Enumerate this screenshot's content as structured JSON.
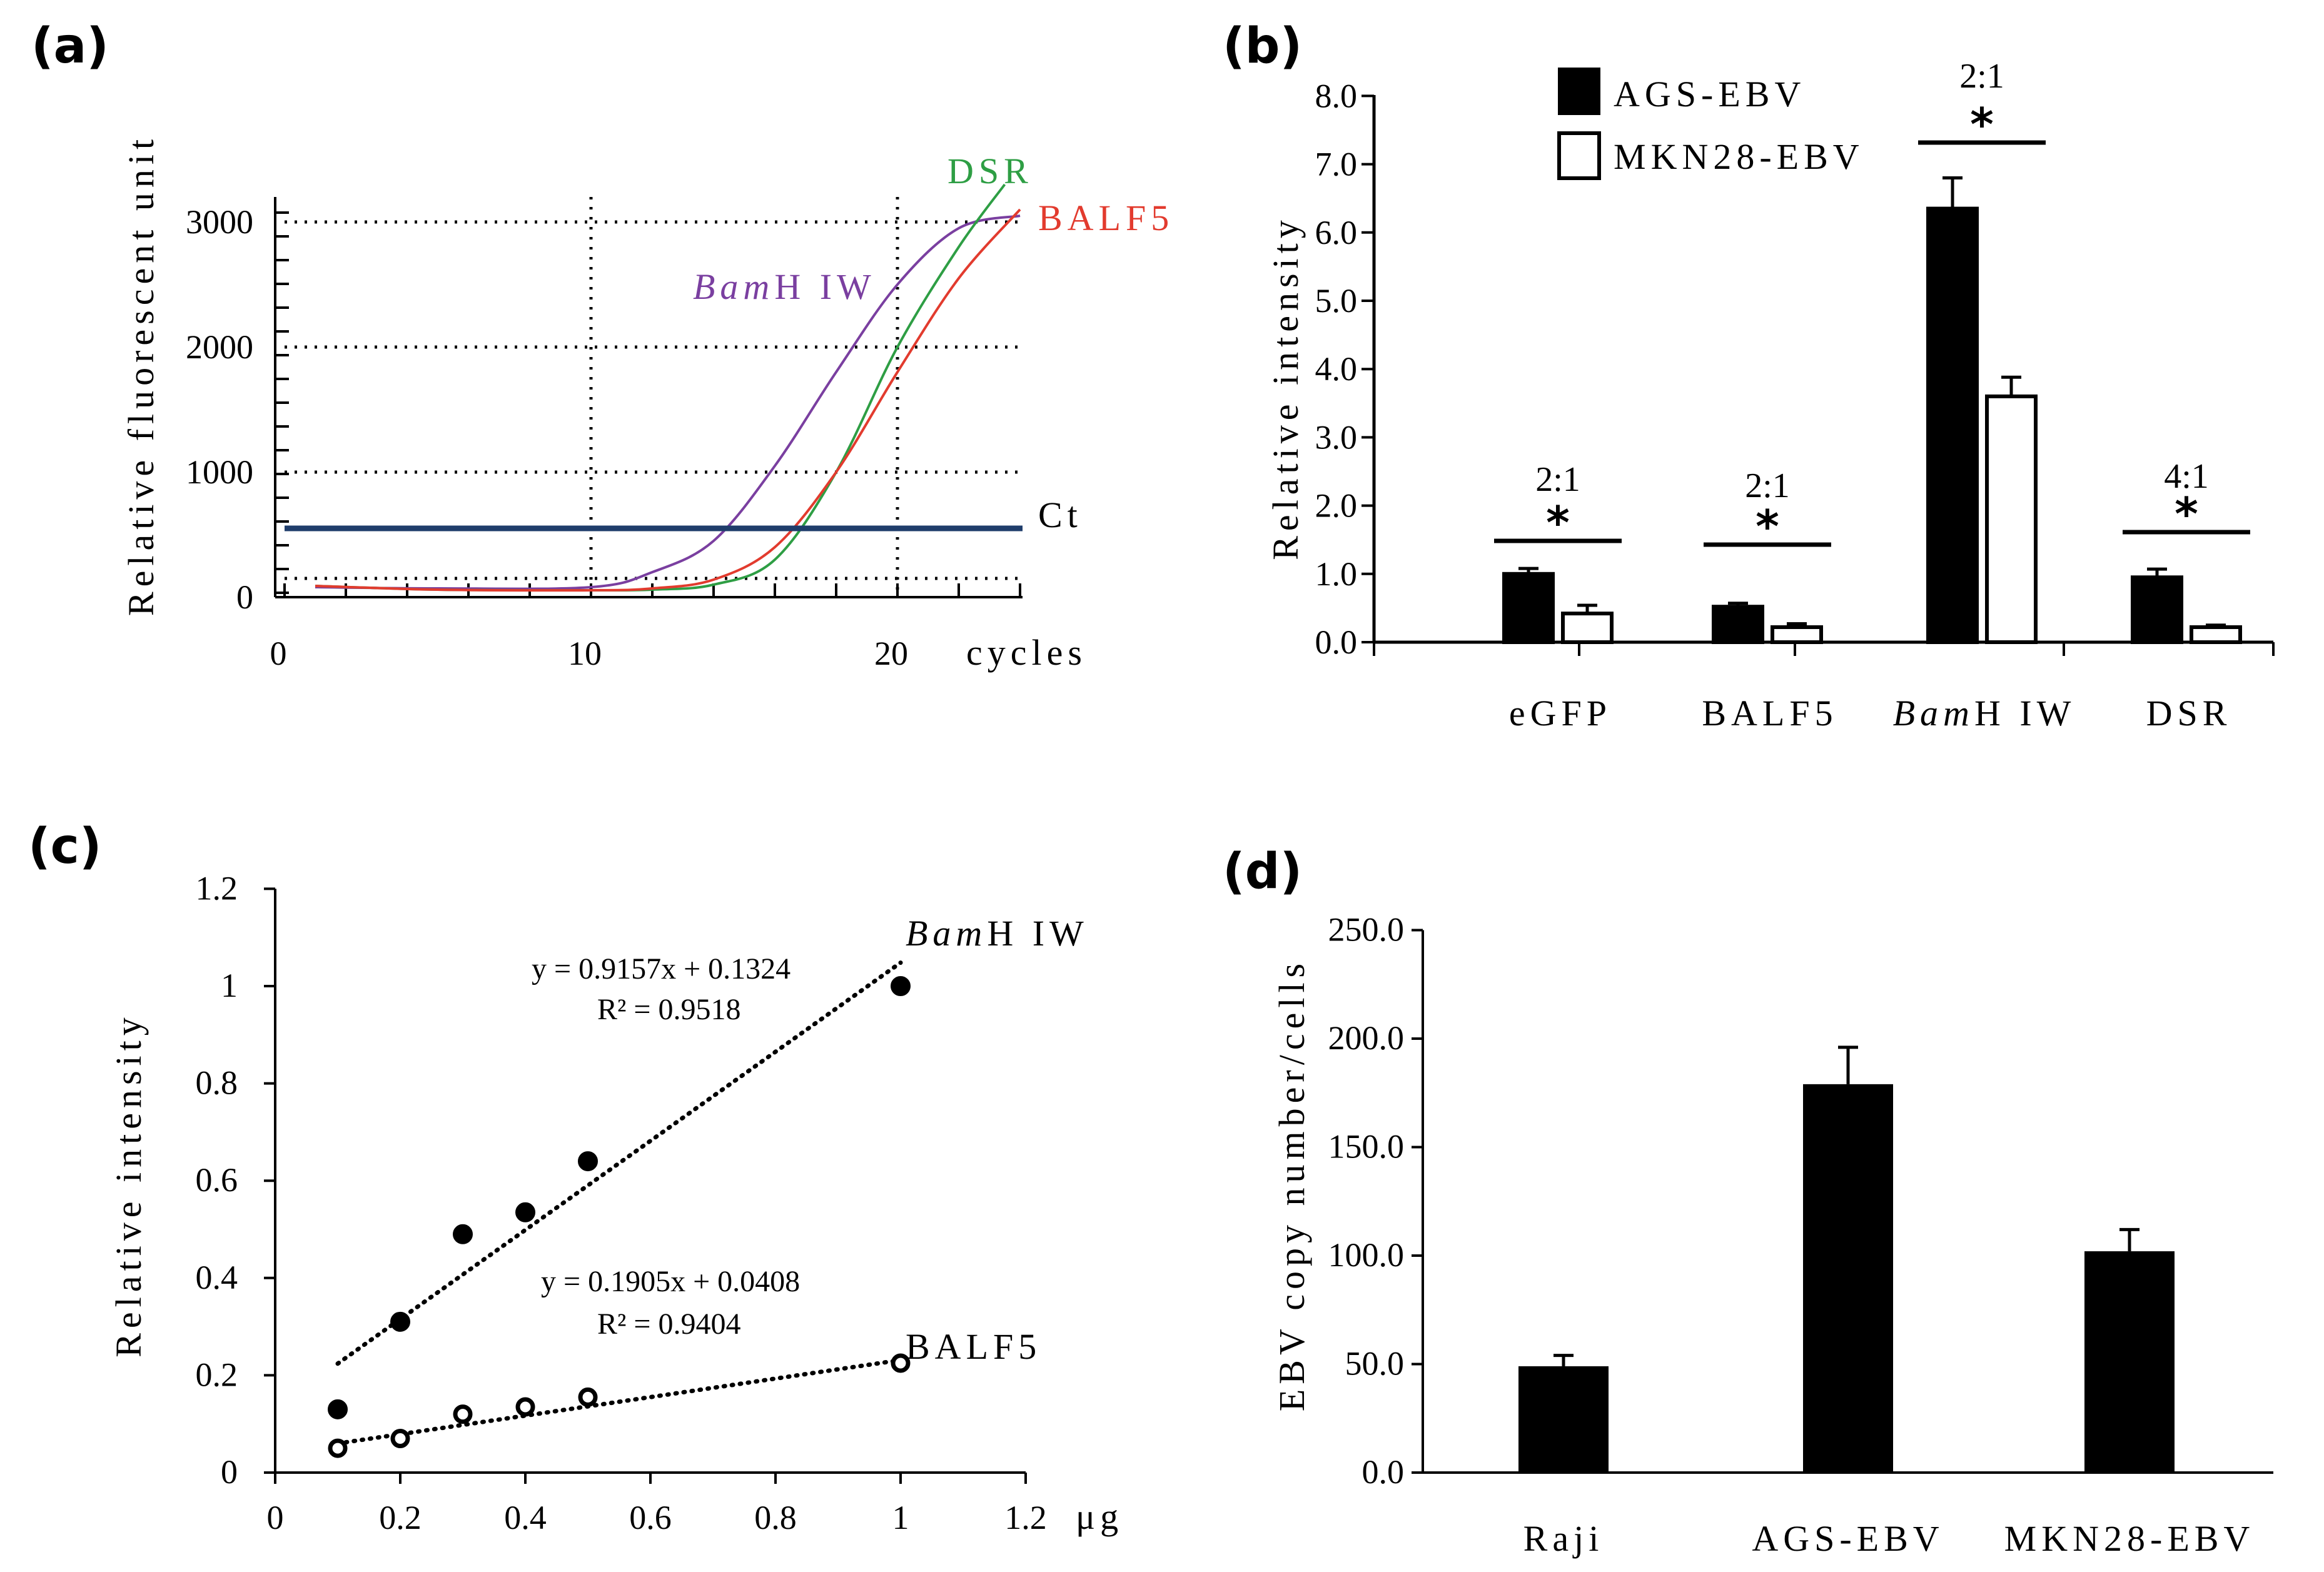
{
  "figure": {
    "panel_labels": [
      "(a)",
      "(b)",
      "(c)",
      "(d)"
    ]
  },
  "chart_data": [
    {
      "id": "a",
      "type": "line",
      "title": "",
      "xlabel": "cycles",
      "ylabel": "Relative fluorescent unit",
      "xlim": [
        0,
        24
      ],
      "ylim": [
        0,
        3200
      ],
      "xticks": [
        0,
        10,
        20
      ],
      "yticks": [
        0,
        1000,
        2000,
        3000
      ],
      "grid": true,
      "threshold": {
        "name": "Ct",
        "value": 550,
        "color": "#1f3d6b"
      },
      "series": [
        {
          "name_italic": "Bam",
          "name_rest": "H IW",
          "color": "#7a3fa0",
          "x": [
            1,
            5,
            10,
            12,
            14,
            16,
            18,
            20,
            22,
            24
          ],
          "y": [
            80,
            70,
            80,
            200,
            450,
            1050,
            1800,
            2500,
            2950,
            3050
          ]
        },
        {
          "name": "DSR",
          "color": "#2e9e44",
          "x": [
            1,
            5,
            10,
            12,
            14,
            16,
            18,
            20,
            22,
            23.5
          ],
          "y": [
            90,
            60,
            55,
            60,
            100,
            300,
            1000,
            2000,
            2800,
            3300
          ]
        },
        {
          "name": "BALF5",
          "color": "#e23b2e",
          "x": [
            1,
            5,
            10,
            12,
            14,
            16,
            18,
            20,
            22,
            24
          ],
          "y": [
            90,
            60,
            55,
            70,
            140,
            400,
            1000,
            1800,
            2550,
            3100
          ]
        }
      ]
    },
    {
      "id": "b",
      "type": "bar",
      "title": "",
      "xlabel": "",
      "ylabel": "Relative intensity",
      "ylim": [
        0,
        8
      ],
      "yticks": [
        "0.0",
        "1.0",
        "2.0",
        "3.0",
        "4.0",
        "5.0",
        "6.0",
        "7.0",
        "8.0"
      ],
      "categories": [
        {
          "italic": "",
          "rest": "eGFP"
        },
        {
          "italic": "",
          "rest": "BALF5"
        },
        {
          "italic": "Bam",
          "rest": "H IW"
        },
        {
          "italic": "",
          "rest": "DSR"
        }
      ],
      "series": [
        {
          "name": "AGS-EBV",
          "fill": "#000000",
          "values": [
            1.0,
            0.52,
            6.35,
            0.95
          ],
          "errors": [
            0.08,
            0.05,
            0.45,
            0.12
          ]
        },
        {
          "name": "MKN28-EBV",
          "fill": "#ffffff",
          "values": [
            0.42,
            0.22,
            3.6,
            0.22
          ],
          "errors": [
            0.12,
            0.05,
            0.28,
            0.03
          ]
        }
      ],
      "ratios": [
        "2:1",
        "2:1",
        "2:1",
        "4:1"
      ],
      "significance": [
        "*",
        "*",
        "*",
        "*"
      ],
      "legend": "top"
    },
    {
      "id": "c",
      "type": "scatter",
      "title": "",
      "xlabel": "μg",
      "ylabel": "Relative intensity",
      "xlim": [
        0,
        1.2
      ],
      "ylim": [
        0,
        1.2
      ],
      "xticks": [
        "0",
        "0.2",
        "0.4",
        "0.6",
        "0.8",
        "1",
        "1.2"
      ],
      "yticks": [
        "0",
        "0.2",
        "0.4",
        "0.6",
        "0.8",
        "1",
        "1.2"
      ],
      "series": [
        {
          "name_italic": "Bam",
          "name_rest": "H IW",
          "marker": "filled",
          "x": [
            0.1,
            0.2,
            0.3,
            0.4,
            0.5,
            1.0
          ],
          "y": [
            0.13,
            0.31,
            0.49,
            0.535,
            0.64,
            1.0
          ],
          "fit": {
            "slope": 0.9157,
            "intercept": 0.1324
          },
          "equation": "y = 0.9157x + 0.1324",
          "r2": "R² = 0.9518"
        },
        {
          "name": "BALF5",
          "marker": "open",
          "x": [
            0.1,
            0.2,
            0.3,
            0.4,
            0.5,
            1.0
          ],
          "y": [
            0.05,
            0.07,
            0.12,
            0.135,
            0.155,
            0.225
          ],
          "fit": {
            "slope": 0.1905,
            "intercept": 0.0408
          },
          "equation": "y = 0.1905x + 0.0408",
          "r2": "R² = 0.9404"
        }
      ]
    },
    {
      "id": "d",
      "type": "bar",
      "title": "",
      "xlabel": "",
      "ylabel": "EBV copy number/cells",
      "ylim": [
        0,
        250
      ],
      "yticks": [
        "0.0",
        "50.0",
        "100.0",
        "150.0",
        "200.0",
        "250.0"
      ],
      "categories": [
        "Raji",
        "AGS-EBV",
        "MKN28-EBV"
      ],
      "values": [
        49,
        179,
        102
      ],
      "errors": [
        5,
        17,
        10
      ]
    }
  ]
}
